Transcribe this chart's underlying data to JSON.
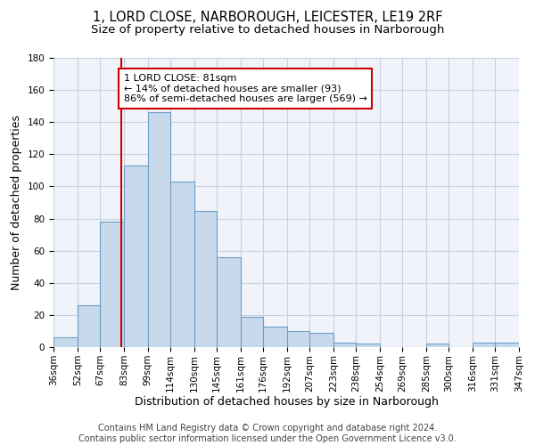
{
  "title": "1, LORD CLOSE, NARBOROUGH, LEICESTER, LE19 2RF",
  "subtitle": "Size of property relative to detached houses in Narborough",
  "xlabel": "Distribution of detached houses by size in Narborough",
  "ylabel": "Number of detached properties",
  "bar_color": "#c9d9ec",
  "bar_edge_color": "#6b9fc8",
  "grid_color": "#c8d0e0",
  "background_color": "#f0f4fa",
  "vline_x": 81,
  "vline_color": "#cc0000",
  "annotation_text": "1 LORD CLOSE: 81sqm\n← 14% of detached houses are smaller (93)\n86% of semi-detached houses are larger (569) →",
  "annotation_box_color": "#ffffff",
  "annotation_box_edge": "#cc0000",
  "bin_edges": [
    36,
    52,
    67,
    83,
    99,
    114,
    130,
    145,
    161,
    176,
    192,
    207,
    223,
    238,
    254,
    269,
    285,
    300,
    316,
    331,
    347
  ],
  "bin_counts": [
    6,
    26,
    78,
    113,
    146,
    103,
    85,
    56,
    19,
    13,
    10,
    9,
    3,
    2,
    0,
    0,
    2,
    0,
    3,
    3
  ],
  "ylim": [
    0,
    180
  ],
  "yticks": [
    0,
    20,
    40,
    60,
    80,
    100,
    120,
    140,
    160,
    180
  ],
  "tick_labels": [
    "36sqm",
    "52sqm",
    "67sqm",
    "83sqm",
    "99sqm",
    "114sqm",
    "130sqm",
    "145sqm",
    "161sqm",
    "176sqm",
    "192sqm",
    "207sqm",
    "223sqm",
    "238sqm",
    "254sqm",
    "269sqm",
    "285sqm",
    "300sqm",
    "316sqm",
    "331sqm",
    "347sqm"
  ],
  "footer_text": "Contains HM Land Registry data © Crown copyright and database right 2024.\nContains public sector information licensed under the Open Government Licence v3.0.",
  "title_fontsize": 10.5,
  "subtitle_fontsize": 9.5,
  "axis_label_fontsize": 9,
  "tick_fontsize": 7.5,
  "annotation_fontsize": 8,
  "footer_fontsize": 7
}
